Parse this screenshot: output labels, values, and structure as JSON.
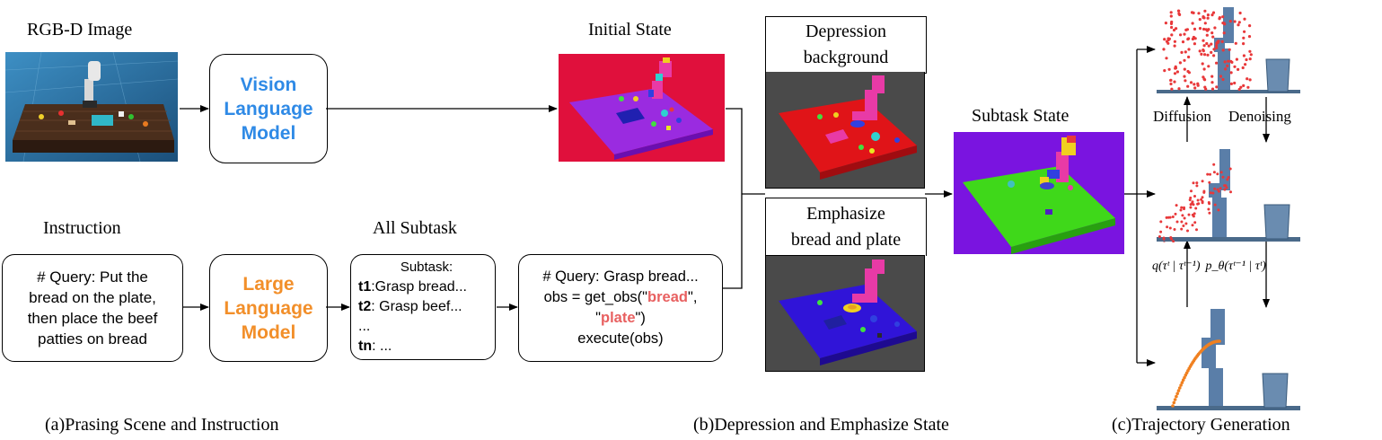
{
  "panel_a": {
    "rgbd_title": "RGB-D Image",
    "instruction_title": "Instruction",
    "all_subtask_title": "All Subtask",
    "vlm": {
      "line1": "Vision",
      "line2": "Language",
      "line3": "Model",
      "color": "#2f8ae6",
      "bg": "#d7e4f6"
    },
    "llm": {
      "line1": "Large",
      "line2": "Language",
      "line3": "Model",
      "color": "#f28f2a",
      "bg": "#fde4cc"
    },
    "instruction_box": [
      "# Query:  Put the",
      "bread on the plate,",
      "then place the beef",
      "patties on  bread"
    ],
    "subtask_box": {
      "header": "Subtask:",
      "rows": [
        {
          "tag": "t1",
          "text": ":Grasp bread..."
        },
        {
          "tag": "t2",
          "text": ": Grasp beef..."
        },
        {
          "tag": "",
          "text": "..."
        },
        {
          "tag": "tn",
          "text": ": ..."
        }
      ]
    },
    "query_box": {
      "line1": "# Query: Grasp bread...",
      "line2_pre": "obs = get_obs(\"",
      "kw1": "bread",
      "line2_post": "\",",
      "line3_pre": "\"",
      "kw2": "plate",
      "line3_post": "\")",
      "line4": "execute(obs)"
    },
    "caption": "(a)Prasing Scene and Instruction"
  },
  "panel_b": {
    "initial_state_title": "Initial State",
    "depression_label": [
      "Depression",
      "background"
    ],
    "emphasize_label": [
      "Emphasize",
      "bread and plate"
    ],
    "subtask_state_title": "Subtask State",
    "caption": "(b)Depression and Emphasize State"
  },
  "panel_c": {
    "diffusion_label": "Diffusion",
    "denoising_label": "Denoising",
    "q_formula": "q(τᵗ | τᵗ⁻¹)",
    "p_formula": "p_θ(τᵗ⁻¹ | τᵗ)",
    "caption": "(c)Trajectory Generation"
  },
  "colors": {
    "initial_bg": "#e0103c",
    "initial_table": "#9a2be0",
    "depression_bg": "#4a4a4a",
    "depression_table": "#e01418",
    "emphasize_table": "#3014d8",
    "subtask_bg": "#7a14e0",
    "subtask_table": "#3fd81a",
    "robot_magenta": "#e83aa6",
    "red_points": "#e8383a",
    "orange_traj": "#f08020",
    "steel_blue": "#5a7ea8"
  }
}
